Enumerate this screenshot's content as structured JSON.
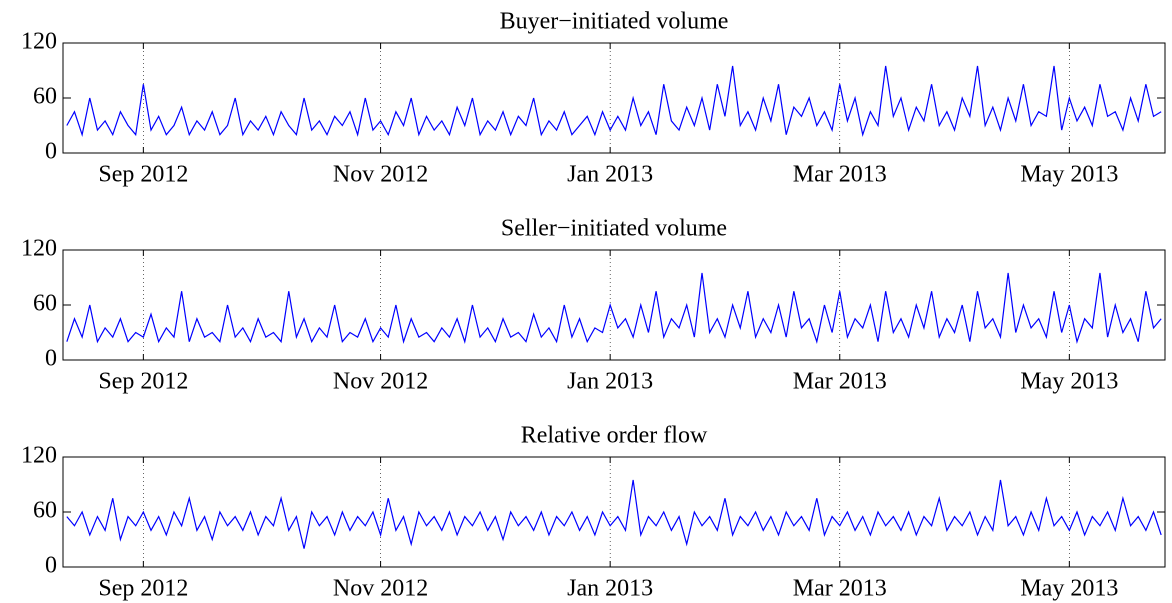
{
  "chart_data": [
    {
      "type": "line",
      "title": "Buyer−initiated volume",
      "categories": [
        null,
        null,
        null,
        null,
        null,
        null,
        null,
        null,
        null,
        null,
        "Sep 2012",
        null,
        null,
        null,
        null,
        null,
        null,
        null,
        null,
        null,
        null,
        null,
        null,
        null,
        null,
        null,
        null,
        null,
        null,
        null,
        null,
        null,
        null,
        null,
        null,
        null,
        null,
        null,
        null,
        null,
        null,
        "Nov 2012",
        null,
        null,
        null,
        null,
        null,
        null,
        null,
        null,
        null,
        null,
        null,
        null,
        null,
        null,
        null,
        null,
        null,
        null,
        null,
        null,
        null,
        null,
        null,
        null,
        null,
        null,
        null,
        null,
        null,
        "Jan 2013",
        null,
        null,
        null,
        null,
        null,
        null,
        null,
        null,
        null,
        null,
        null,
        null,
        null,
        null,
        null,
        null,
        null,
        null,
        null,
        null,
        null,
        null,
        null,
        null,
        null,
        null,
        null,
        null,
        null,
        "Mar 2013",
        null,
        null,
        null,
        null,
        null,
        null,
        null,
        null,
        null,
        null,
        null,
        null,
        null,
        null,
        null,
        null,
        null,
        null,
        null,
        null,
        null,
        null,
        null,
        null,
        null,
        null,
        null,
        null,
        null,
        "May 2013",
        null,
        null,
        null,
        null,
        null,
        null,
        null,
        null,
        null,
        null,
        null,
        null
      ],
      "series": [
        {
          "color": "#0000ff",
          "values": [
            30,
            45,
            20,
            60,
            25,
            35,
            20,
            45,
            30,
            20,
            75,
            25,
            40,
            20,
            30,
            50,
            20,
            35,
            25,
            45,
            20,
            30,
            60,
            20,
            35,
            25,
            40,
            20,
            45,
            30,
            20,
            60,
            25,
            35,
            20,
            40,
            30,
            45,
            20,
            60,
            25,
            35,
            20,
            45,
            30,
            60,
            20,
            40,
            25,
            35,
            20,
            50,
            30,
            60,
            20,
            35,
            25,
            45,
            20,
            40,
            30,
            60,
            20,
            35,
            25,
            45,
            20,
            30,
            40,
            20,
            45,
            25,
            40,
            25,
            60,
            30,
            45,
            20,
            75,
            35,
            25,
            50,
            30,
            60,
            25,
            75,
            40,
            95,
            30,
            45,
            25,
            60,
            35,
            75,
            20,
            50,
            40,
            60,
            30,
            45,
            25,
            75,
            35,
            60,
            20,
            45,
            30,
            95,
            40,
            60,
            25,
            50,
            35,
            75,
            30,
            45,
            25,
            60,
            40,
            95,
            30,
            50,
            25,
            60,
            35,
            75,
            30,
            45,
            40,
            95,
            25,
            60,
            35,
            50,
            30,
            75,
            40,
            45,
            25,
            60,
            35,
            75,
            40,
            45
          ]
        }
      ],
      "ylim": [
        0,
        120
      ],
      "yticks": [
        0,
        60,
        120
      ],
      "xgrid": true
    },
    {
      "type": "line",
      "title": "Seller−initiated volume",
      "categories": [
        null,
        null,
        null,
        null,
        null,
        null,
        null,
        null,
        null,
        null,
        "Sep 2012",
        null,
        null,
        null,
        null,
        null,
        null,
        null,
        null,
        null,
        null,
        null,
        null,
        null,
        null,
        null,
        null,
        null,
        null,
        null,
        null,
        null,
        null,
        null,
        null,
        null,
        null,
        null,
        null,
        null,
        null,
        "Nov 2012",
        null,
        null,
        null,
        null,
        null,
        null,
        null,
        null,
        null,
        null,
        null,
        null,
        null,
        null,
        null,
        null,
        null,
        null,
        null,
        null,
        null,
        null,
        null,
        null,
        null,
        null,
        null,
        null,
        null,
        "Jan 2013",
        null,
        null,
        null,
        null,
        null,
        null,
        null,
        null,
        null,
        null,
        null,
        null,
        null,
        null,
        null,
        null,
        null,
        null,
        null,
        null,
        null,
        null,
        null,
        null,
        null,
        null,
        null,
        null,
        null,
        "Mar 2013",
        null,
        null,
        null,
        null,
        null,
        null,
        null,
        null,
        null,
        null,
        null,
        null,
        null,
        null,
        null,
        null,
        null,
        null,
        null,
        null,
        null,
        null,
        null,
        null,
        null,
        null,
        null,
        null,
        null,
        "May 2013",
        null,
        null,
        null,
        null,
        null,
        null,
        null,
        null,
        null,
        null,
        null,
        null
      ],
      "series": [
        {
          "color": "#0000ff",
          "values": [
            20,
            45,
            25,
            60,
            20,
            35,
            25,
            45,
            20,
            30,
            25,
            50,
            20,
            35,
            25,
            75,
            20,
            45,
            25,
            30,
            20,
            60,
            25,
            35,
            20,
            45,
            25,
            30,
            20,
            75,
            25,
            45,
            20,
            35,
            25,
            60,
            20,
            30,
            25,
            45,
            20,
            35,
            25,
            60,
            20,
            45,
            25,
            30,
            20,
            35,
            25,
            45,
            20,
            60,
            25,
            35,
            20,
            45,
            25,
            30,
            20,
            50,
            25,
            35,
            20,
            60,
            25,
            45,
            20,
            35,
            30,
            60,
            35,
            45,
            25,
            60,
            30,
            75,
            25,
            45,
            35,
            60,
            25,
            95,
            30,
            45,
            25,
            60,
            35,
            75,
            25,
            45,
            30,
            60,
            25,
            75,
            35,
            45,
            20,
            60,
            30,
            75,
            25,
            45,
            35,
            60,
            20,
            75,
            30,
            45,
            25,
            60,
            35,
            75,
            25,
            45,
            30,
            60,
            20,
            75,
            35,
            45,
            25,
            95,
            30,
            60,
            35,
            45,
            25,
            75,
            30,
            60,
            20,
            45,
            35,
            95,
            25,
            60,
            30,
            45,
            20,
            75,
            35,
            45
          ]
        }
      ],
      "ylim": [
        0,
        120
      ],
      "yticks": [
        0,
        60,
        120
      ],
      "xgrid": true
    },
    {
      "type": "line",
      "title": "Relative order flow",
      "categories": [
        null,
        null,
        null,
        null,
        null,
        null,
        null,
        null,
        null,
        null,
        "Sep 2012",
        null,
        null,
        null,
        null,
        null,
        null,
        null,
        null,
        null,
        null,
        null,
        null,
        null,
        null,
        null,
        null,
        null,
        null,
        null,
        null,
        null,
        null,
        null,
        null,
        null,
        null,
        null,
        null,
        null,
        null,
        "Nov 2012",
        null,
        null,
        null,
        null,
        null,
        null,
        null,
        null,
        null,
        null,
        null,
        null,
        null,
        null,
        null,
        null,
        null,
        null,
        null,
        null,
        null,
        null,
        null,
        null,
        null,
        null,
        null,
        null,
        null,
        "Jan 2013",
        null,
        null,
        null,
        null,
        null,
        null,
        null,
        null,
        null,
        null,
        null,
        null,
        null,
        null,
        null,
        null,
        null,
        null,
        null,
        null,
        null,
        null,
        null,
        null,
        null,
        null,
        null,
        null,
        null,
        "Mar 2013",
        null,
        null,
        null,
        null,
        null,
        null,
        null,
        null,
        null,
        null,
        null,
        null,
        null,
        null,
        null,
        null,
        null,
        null,
        null,
        null,
        null,
        null,
        null,
        null,
        null,
        null,
        null,
        null,
        null,
        "May 2013",
        null,
        null,
        null,
        null,
        null,
        null,
        null,
        null,
        null,
        null,
        null,
        null
      ],
      "series": [
        {
          "color": "#0000ff",
          "values": [
            55,
            45,
            60,
            35,
            55,
            40,
            75,
            30,
            55,
            45,
            60,
            40,
            55,
            35,
            60,
            45,
            75,
            40,
            55,
            30,
            60,
            45,
            55,
            40,
            60,
            35,
            55,
            45,
            75,
            40,
            55,
            20,
            60,
            45,
            55,
            35,
            60,
            40,
            55,
            45,
            60,
            35,
            75,
            40,
            55,
            25,
            60,
            45,
            55,
            40,
            60,
            35,
            55,
            45,
            60,
            40,
            55,
            30,
            60,
            45,
            55,
            40,
            60,
            35,
            55,
            45,
            60,
            40,
            55,
            35,
            60,
            45,
            55,
            40,
            95,
            35,
            55,
            45,
            60,
            40,
            55,
            25,
            60,
            45,
            55,
            40,
            75,
            35,
            55,
            45,
            60,
            40,
            55,
            35,
            60,
            45,
            55,
            40,
            75,
            35,
            55,
            45,
            60,
            40,
            55,
            35,
            60,
            45,
            55,
            40,
            60,
            35,
            55,
            45,
            75,
            40,
            55,
            45,
            60,
            35,
            55,
            40,
            95,
            45,
            55,
            35,
            60,
            40,
            75,
            45,
            55,
            40,
            60,
            35,
            55,
            45,
            60,
            40,
            75,
            45,
            55,
            40,
            60,
            35
          ]
        }
      ],
      "ylim": [
        0,
        120
      ],
      "yticks": [
        0,
        60,
        120
      ],
      "xgrid": true
    }
  ]
}
